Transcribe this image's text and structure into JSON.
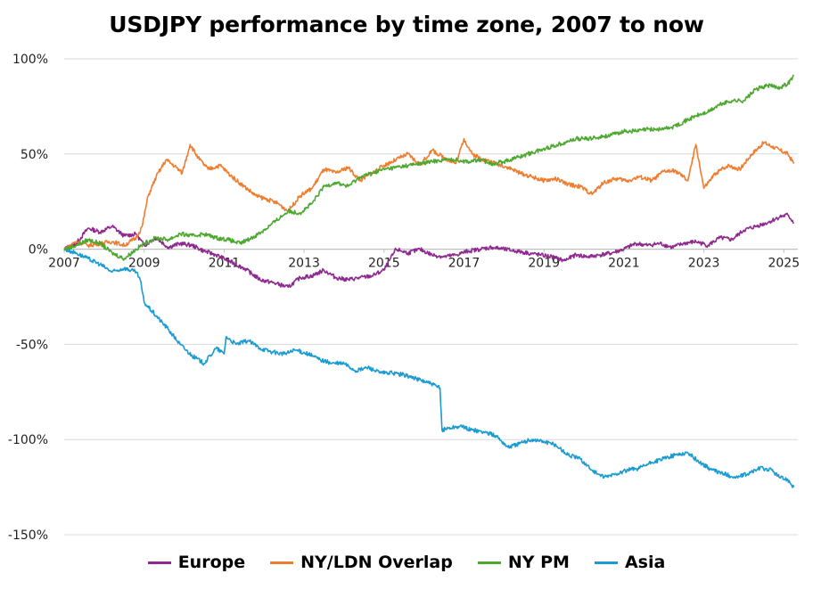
{
  "chart_data": {
    "type": "line",
    "title": "USDJPY performance by time zone, 2007 to now",
    "xlabel": "",
    "ylabel": "",
    "xlim": [
      2007.0,
      2025.35
    ],
    "ylim": [
      -150,
      100
    ],
    "y_ticks": [
      -150,
      -100,
      -50,
      0,
      50,
      100
    ],
    "y_tick_labels": [
      "-150%",
      "-100%",
      "-50%",
      "0%",
      "50%",
      "100%"
    ],
    "x_tick_labels": [
      "2007",
      "2009",
      "2011",
      "2013",
      "2015",
      "2017",
      "2019",
      "2021",
      "2023",
      "2025"
    ],
    "x_ticks": [
      2007,
      2009,
      2011,
      2013,
      2015,
      2017,
      2019,
      2021,
      2023,
      2025
    ],
    "legend_position": "bottom",
    "grid": "horizontal",
    "series": [
      {
        "name": "Europe",
        "color": "#8e2a8f",
        "x": [
          2007.0,
          2007.3,
          2007.6,
          2007.9,
          2008.2,
          2008.5,
          2008.8,
          2009.0,
          2009.3,
          2009.6,
          2009.9,
          2010.2,
          2010.5,
          2010.8,
          2011.1,
          2011.5,
          2011.9,
          2012.3,
          2012.6,
          2012.9,
          2013.2,
          2013.5,
          2013.8,
          2014.1,
          2014.4,
          2014.7,
          2015.0,
          2015.3,
          2015.6,
          2015.9,
          2016.2,
          2016.5,
          2016.8,
          2017.1,
          2017.4,
          2017.7,
          2018.0,
          2018.3,
          2018.6,
          2018.9,
          2019.2,
          2019.5,
          2019.8,
          2020.1,
          2020.4,
          2020.7,
          2021.0,
          2021.3,
          2021.6,
          2021.9,
          2022.2,
          2022.5,
          2022.8,
          2023.1,
          2023.4,
          2023.7,
          2024.0,
          2024.3,
          2024.6,
          2024.9,
          2025.1,
          2025.25
        ],
        "values": [
          0,
          3,
          11,
          9,
          12,
          7,
          8,
          2,
          6,
          1,
          3,
          2,
          -1,
          -3,
          -6,
          -10,
          -16,
          -18,
          -20,
          -15,
          -14,
          -11,
          -15,
          -16,
          -15,
          -14,
          -11,
          0,
          -2,
          0,
          -3,
          -4,
          -3,
          -1,
          0,
          1,
          0,
          -1,
          -2,
          -3,
          -4,
          -6,
          -3,
          -4,
          -3,
          -2,
          0,
          3,
          2,
          3,
          1,
          3,
          4,
          2,
          6,
          5,
          10,
          12,
          14,
          17,
          18,
          14
        ]
      },
      {
        "name": "NY/LDN Overlap",
        "color": "#f07c2e",
        "x": [
          2007.0,
          2007.3,
          2007.6,
          2007.9,
          2008.2,
          2008.5,
          2008.8,
          2008.95,
          2009.1,
          2009.3,
          2009.55,
          2009.8,
          2009.95,
          2010.15,
          2010.35,
          2010.6,
          2010.9,
          2011.2,
          2011.5,
          2011.8,
          2012.1,
          2012.35,
          2012.6,
          2012.9,
          2013.2,
          2013.5,
          2013.8,
          2014.1,
          2014.4,
          2014.7,
          2015.0,
          2015.3,
          2015.6,
          2015.9,
          2016.2,
          2016.5,
          2016.8,
          2017.0,
          2017.2,
          2017.5,
          2017.8,
          2018.1,
          2018.4,
          2018.7,
          2019.0,
          2019.3,
          2019.6,
          2019.9,
          2020.2,
          2020.5,
          2020.8,
          2021.1,
          2021.4,
          2021.7,
          2022.0,
          2022.3,
          2022.6,
          2022.8,
          2023.0,
          2023.3,
          2023.6,
          2023.9,
          2024.2,
          2024.5,
          2024.7,
          2024.9,
          2025.1,
          2025.25
        ],
        "values": [
          0,
          4,
          2,
          3,
          4,
          2,
          6,
          12,
          28,
          38,
          47,
          43,
          40,
          55,
          48,
          42,
          44,
          38,
          33,
          28,
          26,
          24,
          20,
          28,
          32,
          42,
          40,
          43,
          36,
          40,
          44,
          47,
          50,
          44,
          52,
          48,
          45,
          58,
          50,
          47,
          45,
          43,
          40,
          38,
          36,
          37,
          34,
          33,
          29,
          35,
          37,
          36,
          38,
          36,
          41,
          41,
          36,
          55,
          32,
          40,
          44,
          42,
          50,
          56,
          54,
          52,
          50,
          45
        ]
      },
      {
        "name": "NY PM",
        "color": "#4ca82f",
        "x": [
          2007.0,
          2007.3,
          2007.6,
          2007.9,
          2008.2,
          2008.5,
          2008.8,
          2009.0,
          2009.3,
          2009.6,
          2009.9,
          2010.2,
          2010.5,
          2010.8,
          2011.1,
          2011.4,
          2011.7,
          2012.0,
          2012.3,
          2012.6,
          2012.9,
          2013.2,
          2013.5,
          2013.8,
          2014.1,
          2014.4,
          2014.7,
          2015.0,
          2015.3,
          2015.6,
          2015.9,
          2016.2,
          2016.5,
          2016.8,
          2017.1,
          2017.4,
          2017.7,
          2018.0,
          2018.3,
          2018.6,
          2018.9,
          2019.2,
          2019.5,
          2019.8,
          2020.1,
          2020.4,
          2020.7,
          2021.0,
          2021.3,
          2021.6,
          2021.9,
          2022.2,
          2022.5,
          2022.8,
          2023.1,
          2023.4,
          2023.7,
          2024.0,
          2024.3,
          2024.6,
          2024.9,
          2025.1,
          2025.25
        ],
        "values": [
          0,
          2,
          5,
          3,
          -2,
          -5,
          0,
          3,
          6,
          5,
          8,
          7,
          8,
          6,
          5,
          3,
          6,
          10,
          15,
          20,
          19,
          24,
          33,
          35,
          33,
          38,
          40,
          42,
          43,
          44,
          45,
          46,
          47,
          47,
          46,
          47,
          45,
          46,
          48,
          50,
          52,
          54,
          56,
          58,
          58,
          59,
          60,
          62,
          62,
          63,
          63,
          64,
          67,
          70,
          72,
          76,
          78,
          78,
          84,
          86,
          85,
          87,
          91
        ]
      },
      {
        "name": "Asia",
        "color": "#1a9bd1",
        "x": [
          2007.0,
          2007.3,
          2007.6,
          2007.9,
          2008.2,
          2008.5,
          2008.8,
          2008.9,
          2009.0,
          2009.3,
          2009.6,
          2009.9,
          2010.2,
          2010.5,
          2010.8,
          2011.0,
          2011.05,
          2011.3,
          2011.6,
          2011.9,
          2012.2,
          2012.5,
          2012.8,
          2013.1,
          2013.4,
          2013.7,
          2014.0,
          2014.3,
          2014.6,
          2014.9,
          2015.2,
          2015.5,
          2015.8,
          2016.1,
          2016.4,
          2016.45,
          2016.6,
          2016.9,
          2017.2,
          2017.5,
          2017.8,
          2018.1,
          2018.4,
          2018.7,
          2019.0,
          2019.3,
          2019.6,
          2019.9,
          2020.2,
          2020.5,
          2020.8,
          2021.1,
          2021.4,
          2021.7,
          2022.0,
          2022.3,
          2022.6,
          2022.9,
          2023.2,
          2023.5,
          2023.8,
          2024.1,
          2024.4,
          2024.7,
          2024.9,
          2025.1,
          2025.25
        ],
        "values": [
          0,
          -2,
          -5,
          -8,
          -12,
          -10,
          -12,
          -16,
          -28,
          -35,
          -42,
          -50,
          -56,
          -60,
          -52,
          -55,
          -46,
          -50,
          -48,
          -52,
          -54,
          -55,
          -53,
          -55,
          -58,
          -60,
          -60,
          -64,
          -62,
          -65,
          -65,
          -66,
          -68,
          -70,
          -73,
          -95,
          -94,
          -93,
          -95,
          -96,
          -98,
          -104,
          -102,
          -100,
          -101,
          -103,
          -108,
          -110,
          -116,
          -120,
          -118,
          -116,
          -115,
          -112,
          -110,
          -108,
          -107,
          -112,
          -116,
          -118,
          -120,
          -118,
          -115,
          -116,
          -120,
          -121,
          -125
        ]
      }
    ]
  }
}
